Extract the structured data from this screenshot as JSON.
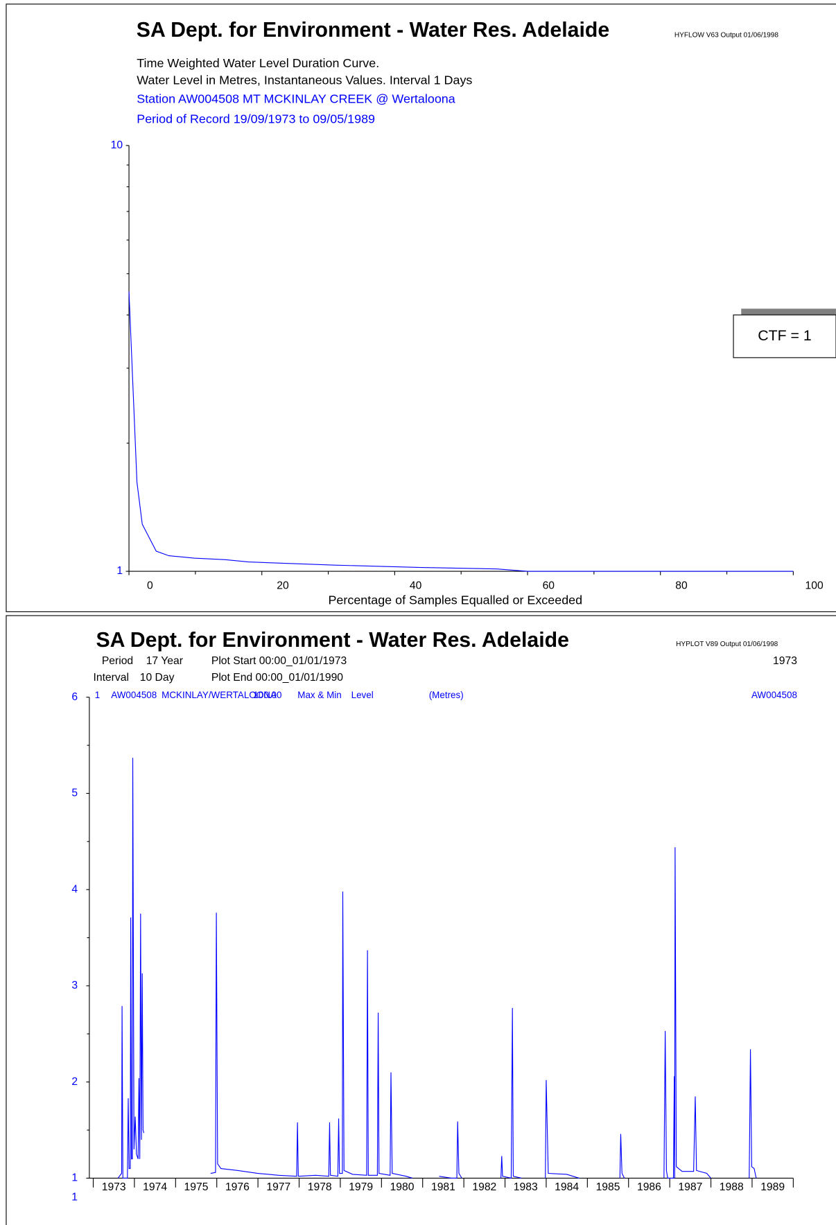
{
  "chart_data": [
    {
      "type": "line",
      "yscale": "log",
      "title": "SA Dept. for Environment - Water Res. Adelaide",
      "program": "HYFLOW V63  Output 01/06/1998",
      "subtitle_lines": [
        "Time Weighted Water Level Duration Curve.",
        "Water Level in Metres,   Instantaneous Values.  Interval   1 Days"
      ],
      "station": "Station AW004508  MT MCKINLAY CREEK @ Wertaloona",
      "period": "Period of Record 19/09/1973 to 09/05/1989",
      "x_label": "Percentage of Samples Equalled or Exceeded",
      "color": "#0000ff",
      "x": [
        0,
        1.2,
        2.0,
        2.8,
        4.1,
        6,
        9.8,
        14.5,
        18,
        31,
        44,
        55.4,
        60,
        100
      ],
      "values": [
        4.54,
        1.62,
        1.29,
        1.22,
        1.115,
        1.088,
        1.074,
        1.065,
        1.052,
        1.034,
        1.021,
        1.013,
        1.0,
        1.0
      ],
      "xlim": [
        0,
        100
      ],
      "xticks": [
        0,
        20,
        40,
        60,
        80,
        100
      ],
      "xminorticks": [
        10,
        30,
        50,
        70,
        90
      ],
      "ylim": [
        1,
        10
      ],
      "yticks": [
        1,
        10
      ],
      "yminorticks": [
        2,
        3,
        4,
        5,
        6,
        7,
        8,
        9
      ]
    },
    {
      "type": "line",
      "title": "SA Dept. for Environment - Water Res. Adelaide",
      "program": "HYPLOT V89  Output 01/06/1998",
      "start_year": "1973",
      "period_label": "Period",
      "period_value": "17 Year",
      "plot_start": "Plot Start  00:00_01/01/1973",
      "interval_label": "Interval",
      "interval_value": "10 Day",
      "plot_end": "Plot End   00:00_01/01/1990",
      "series_number": "1",
      "series_site": "AW004508",
      "series_name": "MCKINLAY/WERTALOONA",
      "series_offset": "100.00",
      "series_kind": "Max & Min",
      "series_var": "Level",
      "series_units": "(Metres)",
      "site_right": "AW004508",
      "ctf": "CTF = 1",
      "extra_label": "1",
      "color": "#0000ff",
      "categories": [
        "1973",
        "1974",
        "1975",
        "1976",
        "1977",
        "1978",
        "1979",
        "1980",
        "1981",
        "1982",
        "1983",
        "1984",
        "1985",
        "1986",
        "1987",
        "1988",
        "1989"
      ],
      "xlim": [
        1973,
        1990
      ],
      "xticks": [
        1973,
        1974,
        1975,
        1976,
        1977,
        1978,
        1979,
        1980,
        1981,
        1982,
        1983,
        1984,
        1985,
        1986,
        1987,
        1988,
        1989,
        1990
      ],
      "ylim": [
        1,
        6
      ],
      "yticks": [
        1,
        2,
        3,
        4,
        5,
        6
      ],
      "yminorticks": [
        1.5,
        2.5,
        3.5,
        4.5,
        5.5
      ],
      "x": [
        1973.6,
        1973.69,
        1973.7,
        1973.72,
        1973.83,
        1973.85,
        1973.87,
        1973.9,
        1973.91,
        1973.93,
        1973.95,
        1973.96,
        1973.99,
        1974.02,
        1974.05,
        1974.09,
        1974.11,
        1974.13,
        1974.15,
        1974.17,
        1974.19,
        1974.21,
        1974.23,
        1975.0,
        1975.85,
        1975.97,
        1975.99,
        1976.02,
        1976.1,
        1976.5,
        1977.0,
        1977.5,
        1977.94,
        1977.96,
        1977.98,
        1978.4,
        1978.72,
        1978.74,
        1978.76,
        1978.94,
        1978.96,
        1978.98,
        1979.05,
        1979.06,
        1979.09,
        1979.3,
        1979.64,
        1979.66,
        1979.68,
        1979.9,
        1979.92,
        1979.94,
        1980.21,
        1980.23,
        1980.26,
        1980.6,
        1980.75,
        1981.0,
        1981.4,
        1981.7,
        1981.83,
        1981.85,
        1981.88,
        1981.95,
        1982.5,
        1982.9,
        1982.92,
        1982.94,
        1983.15,
        1983.18,
        1983.2,
        1983.4,
        1983.7,
        1983.98,
        1984.0,
        1984.05,
        1984.5,
        1984.8,
        1985.3,
        1985.79,
        1985.81,
        1985.84,
        1985.9,
        1986.4,
        1986.86,
        1986.89,
        1986.92,
        1986.95,
        1987.09,
        1987.11,
        1987.12,
        1987.13,
        1987.16,
        1987.3,
        1987.58,
        1987.62,
        1987.65,
        1987.9,
        1988.0,
        1988.5,
        1988.93,
        1988.96,
        1988.99,
        1989.05,
        1989.1
      ],
      "values": [
        1.0,
        1.05,
        2.79,
        1.0,
        1.0,
        1.83,
        1.1,
        1.1,
        3.71,
        1.2,
        1.2,
        5.37,
        1.3,
        1.64,
        1.25,
        1.2,
        2.04,
        1.2,
        3.75,
        1.4,
        3.13,
        1.5,
        1.47,
        null,
        1.05,
        1.06,
        3.76,
        1.15,
        1.1,
        1.08,
        1.05,
        1.03,
        1.02,
        1.58,
        1.02,
        1.03,
        1.02,
        1.58,
        1.03,
        1.02,
        1.62,
        1.05,
        1.05,
        3.98,
        1.08,
        1.04,
        1.03,
        3.37,
        1.03,
        1.03,
        2.72,
        1.05,
        1.03,
        2.1,
        1.05,
        1.02,
        1.0,
        null,
        1.02,
        1.0,
        1.0,
        1.59,
        1.05,
        1.0,
        null,
        1.0,
        1.23,
        1.02,
        1.0,
        2.77,
        1.02,
        1.0,
        null,
        1.0,
        2.02,
        1.05,
        1.04,
        1.0,
        null,
        1.0,
        1.46,
        1.05,
        1.0,
        null,
        1.0,
        2.53,
        1.08,
        1.0,
        1.0,
        2.06,
        1.0,
        4.44,
        1.12,
        1.07,
        1.07,
        1.85,
        1.08,
        1.05,
        1.0,
        null,
        1.0,
        2.34,
        1.12,
        1.1,
        1.0
      ]
    }
  ]
}
